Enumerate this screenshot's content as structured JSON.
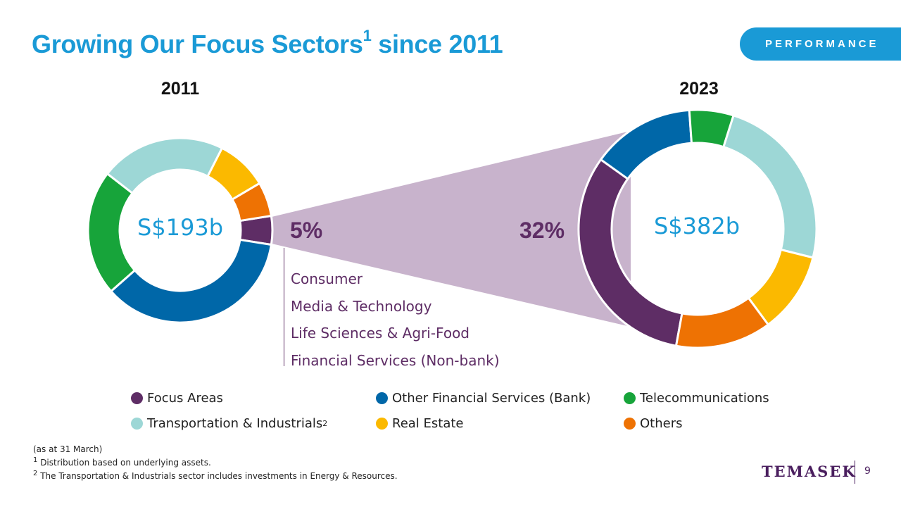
{
  "header": {
    "title": "Growing Our Focus Sectors",
    "title_sup": "1",
    "title_tail": " since 2011",
    "badge": "PERFORMANCE"
  },
  "chart_data": [
    {
      "type": "donut",
      "title": "2011",
      "center_label": "S$193b",
      "slices": [
        {
          "name": "Focus Areas",
          "value": 5,
          "color": "#5e2d65"
        },
        {
          "name": "Other Financial Services (Bank)",
          "value": 36,
          "color": "#0067a8"
        },
        {
          "name": "Telecommunications",
          "value": 22,
          "color": "#17a43a"
        },
        {
          "name": "Transportation & Industrials",
          "value": 22,
          "color": "#9dd7d6"
        },
        {
          "name": "Real Estate",
          "value": 9,
          "color": "#fbb900"
        },
        {
          "name": "Others",
          "value": 6,
          "color": "#ee7203"
        }
      ],
      "highlight_label": "5%"
    },
    {
      "type": "donut",
      "title": "2023",
      "center_label": "S$382b",
      "slices": [
        {
          "name": "Focus Areas",
          "value": 32,
          "color": "#5e2d65"
        },
        {
          "name": "Other Financial Services (Bank)",
          "value": 14,
          "color": "#0067a8"
        },
        {
          "name": "Telecommunications",
          "value": 6,
          "color": "#17a43a"
        },
        {
          "name": "Transportation & Industrials",
          "value": 24,
          "color": "#9dd7d6"
        },
        {
          "name": "Real Estate",
          "value": 11,
          "color": "#fbb900"
        },
        {
          "name": "Others",
          "value": 13,
          "color": "#ee7203"
        }
      ],
      "highlight_label": "32%"
    }
  ],
  "focus_sectors": [
    "Consumer",
    "Media & Technology",
    "Life Sciences & Agri-Food",
    "Financial Services (Non-bank)"
  ],
  "legend": [
    {
      "label": "Focus Areas",
      "sup": "",
      "color": "#5e2d65"
    },
    {
      "label": "Other Financial Services (Bank)",
      "sup": "",
      "color": "#0067a8"
    },
    {
      "label": "Telecommunications",
      "sup": "",
      "color": "#17a43a"
    },
    {
      "label": "Transportation & Industrials",
      "sup": "2",
      "color": "#9dd7d6"
    },
    {
      "label": "Real Estate",
      "sup": "",
      "color": "#fbb900"
    },
    {
      "label": "Others",
      "sup": "",
      "color": "#ee7203"
    }
  ],
  "colors": {
    "connector": "#c8b3cc",
    "accent": "#1a9ad6"
  },
  "footnotes": {
    "asat": "(as at 31 March)",
    "note1_marker": "1",
    "note1": " Distribution based on underlying assets.",
    "note2_marker": "2",
    "note2": " The Transportation & Industrials sector includes investments in Energy & Resources."
  },
  "footer": {
    "logo": "TEMASEK",
    "page_number": "9"
  }
}
